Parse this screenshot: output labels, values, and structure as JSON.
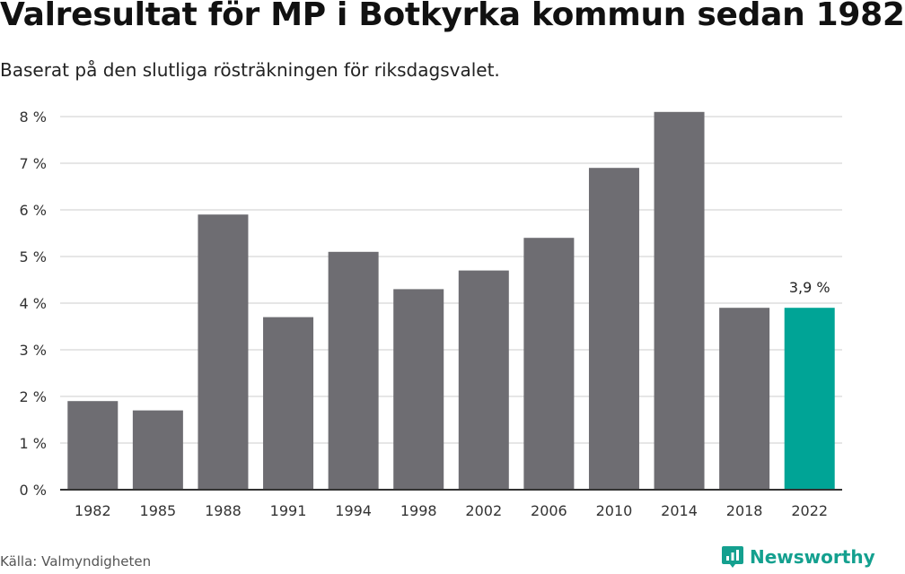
{
  "title": "Valresultat för MP i Botkyrka kommun sedan 1982",
  "subtitle": "Baserat på den slutliga rösträkningen för riksdagsvalet.",
  "source": "Källa: Valmyndigheten",
  "brand": {
    "name": "Newsworthy",
    "logo_icon": "newsworthy-logo-icon",
    "color": "#14a08f"
  },
  "colors": {
    "bar": "#6e6d72",
    "highlight": "#00a496",
    "grid": "#dedede",
    "axis": "#333333"
  },
  "chart_data": {
    "type": "bar",
    "title": "Valresultat för MP i Botkyrka kommun sedan 1982",
    "subtitle": "Baserat på den slutliga rösträkningen för riksdagsvalet.",
    "categories": [
      "1982",
      "1985",
      "1988",
      "1991",
      "1994",
      "1998",
      "2002",
      "2006",
      "2010",
      "2014",
      "2018",
      "2022"
    ],
    "values": [
      1.9,
      1.7,
      5.9,
      3.7,
      5.1,
      4.3,
      4.7,
      5.4,
      6.9,
      8.1,
      3.9,
      3.9
    ],
    "highlight_index": 11,
    "annotation": {
      "index": 11,
      "text": "3,9 %"
    },
    "ylim": [
      0,
      8
    ],
    "yticks": [
      0,
      1,
      2,
      3,
      4,
      5,
      6,
      7,
      8
    ],
    "ytick_labels": [
      "0 %",
      "1 %",
      "2 %",
      "3 %",
      "4 %",
      "5 %",
      "6 %",
      "7 %",
      "8 %"
    ],
    "xlabel": "",
    "ylabel": "",
    "grid": true
  }
}
